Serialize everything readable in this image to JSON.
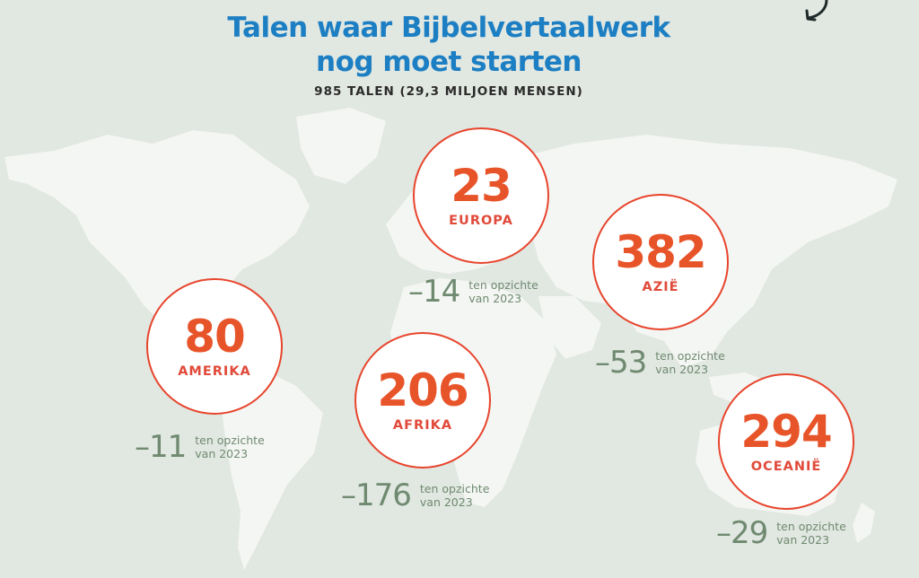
{
  "title_line1": "Talen waar Bijbelvertaalwerk",
  "title_line2": "nog moet starten",
  "subtitle": "985 TALEN (29,3 MILJOEN MENSEN)",
  "colors": {
    "title": "#1d7fc3",
    "number": "#e8542a",
    "ring": "#e8452d",
    "delta": "#6f8a70",
    "background": "#e1e7e1",
    "land": "#f4f6f3"
  },
  "regions": [
    {
      "id": "europa",
      "value": "23",
      "label": "EUROPA",
      "delta": "–14",
      "note1": "ten opzichte",
      "note2": "van 2023"
    },
    {
      "id": "azie",
      "value": "382",
      "label": "AZIË",
      "delta": "–53",
      "note1": "ten opzichte",
      "note2": "van 2023"
    },
    {
      "id": "amerika",
      "value": "80",
      "label": "AMERIKA",
      "delta": "–11",
      "note1": "ten opzichte",
      "note2": "van 2023"
    },
    {
      "id": "afrika",
      "value": "206",
      "label": "AFRIKA",
      "delta": "–176",
      "note1": "ten opzichte",
      "note2": "van 2023"
    },
    {
      "id": "oceanie",
      "value": "294",
      "label": "OCEANIË",
      "delta": "–29",
      "note1": "ten opzichte",
      "note2": "van 2023"
    }
  ]
}
